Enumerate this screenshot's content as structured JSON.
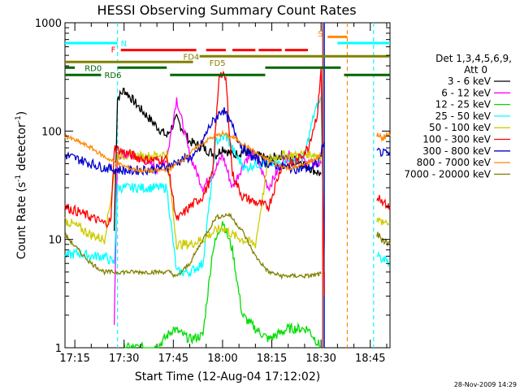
{
  "chart_data": {
    "type": "line",
    "title": "HESSI Observing Summary Count Rates",
    "xlabel": "Start Time (12-Aug-04 17:12:02)",
    "ylabel_main": "Count Rate (s",
    "ylabel_sup": "-1",
    "ylabel_mid": " detector",
    "ylabel_end": ")",
    "ylim": [
      1,
      1000
    ],
    "yscale": "log",
    "xlim_min": [
      1032,
      1131
    ],
    "x_ticks": [
      {
        "label": "17:15",
        "min": 1035
      },
      {
        "label": "17:30",
        "min": 1050
      },
      {
        "label": "17:45",
        "min": 1065
      },
      {
        "label": "18:00",
        "min": 1080
      },
      {
        "label": "18:15",
        "min": 1095
      },
      {
        "label": "18:30",
        "min": 1110
      },
      {
        "label": "18:45",
        "min": 1125
      }
    ],
    "y_ticks": [
      {
        "label": "1",
        "value": 1
      },
      {
        "label": "10",
        "value": 10
      },
      {
        "label": "100",
        "value": 100
      },
      {
        "label": "1000",
        "value": 1000
      }
    ],
    "legend_title_1": "Det 1,3,4,5,6,9,",
    "legend_title_2": "Att 0",
    "legend_position": "right",
    "series": [
      {
        "name": "3 - 6 keV",
        "color": "#000000",
        "points": [
          [
            1047,
            12
          ],
          [
            1048,
            200
          ],
          [
            1050,
            240
          ],
          [
            1055,
            160
          ],
          [
            1060,
            110
          ],
          [
            1063,
            90
          ],
          [
            1066,
            130
          ],
          [
            1070,
            80
          ],
          [
            1074,
            70
          ],
          [
            1078,
            60
          ],
          [
            1080,
            70
          ],
          [
            1083,
            60
          ],
          [
            1087,
            65
          ],
          [
            1090,
            60
          ],
          [
            1094,
            55
          ],
          [
            1098,
            60
          ],
          [
            1104,
            52
          ],
          [
            1107,
            45
          ],
          [
            1110,
            40
          ]
        ]
      },
      {
        "name": "6 - 12 keV",
        "color": "#ff00ff",
        "points": [
          [
            1047,
            1.5
          ],
          [
            1048,
            60
          ],
          [
            1052,
            60
          ],
          [
            1056,
            55
          ],
          [
            1060,
            45
          ],
          [
            1063,
            55
          ],
          [
            1066,
            200
          ],
          [
            1070,
            60
          ],
          [
            1074,
            30
          ],
          [
            1077,
            40
          ],
          [
            1080,
            60
          ],
          [
            1083,
            30
          ],
          [
            1087,
            55
          ],
          [
            1090,
            60
          ],
          [
            1094,
            30
          ],
          [
            1098,
            50
          ],
          [
            1100,
            60
          ],
          [
            1104,
            55
          ],
          [
            1107,
            50
          ],
          [
            1110,
            50
          ]
        ]
      },
      {
        "name": "12 - 25 keV",
        "color": "#00dd00",
        "points": [
          [
            1050,
            1
          ],
          [
            1060,
            1
          ],
          [
            1065,
            1.5
          ],
          [
            1070,
            1.2
          ],
          [
            1074,
            1.3
          ],
          [
            1077,
            8
          ],
          [
            1080,
            15
          ],
          [
            1083,
            8
          ],
          [
            1086,
            2
          ],
          [
            1090,
            1.5
          ],
          [
            1094,
            1.2
          ],
          [
            1100,
            1.5
          ],
          [
            1106,
            1.5
          ],
          [
            1110,
            1
          ]
        ]
      },
      {
        "name": "25 - 50 keV",
        "color": "#00ffff",
        "points": [
          [
            1032,
            7
          ],
          [
            1036,
            7.5
          ],
          [
            1040,
            7
          ],
          [
            1044,
            7
          ],
          [
            1047,
            6
          ],
          [
            1048,
            30
          ],
          [
            1052,
            30
          ],
          [
            1056,
            30
          ],
          [
            1060,
            30
          ],
          [
            1063,
            30
          ],
          [
            1066,
            5
          ],
          [
            1070,
            5
          ],
          [
            1074,
            6
          ],
          [
            1078,
            80
          ],
          [
            1081,
            90
          ],
          [
            1084,
            60
          ],
          [
            1087,
            45
          ],
          [
            1090,
            50
          ],
          [
            1094,
            50
          ],
          [
            1098,
            50
          ],
          [
            1102,
            52
          ],
          [
            1105,
            60
          ],
          [
            1108,
            150
          ],
          [
            1110,
            200
          ],
          [
            1111,
            5
          ]
        ]
      },
      {
        "name": "50 - 100 keV",
        "color": "#cccc00",
        "points": [
          [
            1032,
            15
          ],
          [
            1036,
            13
          ],
          [
            1040,
            11
          ],
          [
            1044,
            10
          ],
          [
            1048,
            60
          ],
          [
            1052,
            60
          ],
          [
            1056,
            58
          ],
          [
            1060,
            60
          ],
          [
            1063,
            62
          ],
          [
            1066,
            9
          ],
          [
            1070,
            9
          ],
          [
            1074,
            10
          ],
          [
            1078,
            12
          ],
          [
            1080,
            13
          ],
          [
            1083,
            11
          ],
          [
            1086,
            10
          ],
          [
            1090,
            9
          ],
          [
            1094,
            55
          ],
          [
            1098,
            60
          ],
          [
            1102,
            60
          ],
          [
            1106,
            62
          ],
          [
            1110,
            60
          ]
        ]
      },
      {
        "name": "100 - 300 keV",
        "color": "#ff0000",
        "points": [
          [
            1032,
            20
          ],
          [
            1036,
            18
          ],
          [
            1040,
            16
          ],
          [
            1044,
            14
          ],
          [
            1046,
            15
          ],
          [
            1047,
            70
          ],
          [
            1052,
            60
          ],
          [
            1056,
            55
          ],
          [
            1060,
            54
          ],
          [
            1063,
            55
          ],
          [
            1066,
            15
          ],
          [
            1070,
            20
          ],
          [
            1074,
            25
          ],
          [
            1077,
            40
          ],
          [
            1079,
            350
          ],
          [
            1081,
            300
          ],
          [
            1083,
            40
          ],
          [
            1086,
            25
          ],
          [
            1090,
            22
          ],
          [
            1094,
            20
          ],
          [
            1098,
            48
          ],
          [
            1102,
            50
          ],
          [
            1106,
            70
          ],
          [
            1109,
            150
          ],
          [
            1110,
            400
          ],
          [
            1111,
            3
          ]
        ]
      },
      {
        "name": "300 - 800 keV",
        "color": "#0000cc",
        "points": [
          [
            1032,
            60
          ],
          [
            1036,
            55
          ],
          [
            1040,
            50
          ],
          [
            1044,
            46
          ],
          [
            1048,
            44
          ],
          [
            1052,
            43
          ],
          [
            1056,
            44
          ],
          [
            1060,
            45
          ],
          [
            1064,
            48
          ],
          [
            1068,
            55
          ],
          [
            1072,
            60
          ],
          [
            1076,
            110
          ],
          [
            1080,
            160
          ],
          [
            1083,
            110
          ],
          [
            1086,
            70
          ],
          [
            1090,
            55
          ],
          [
            1094,
            50
          ],
          [
            1098,
            47
          ],
          [
            1102,
            45
          ],
          [
            1106,
            45
          ],
          [
            1109,
            50
          ],
          [
            1111,
            80
          ]
        ]
      },
      {
        "name": "800 - 7000 keV",
        "color": "#ff8800",
        "points": [
          [
            1032,
            90
          ],
          [
            1036,
            80
          ],
          [
            1040,
            70
          ],
          [
            1044,
            58
          ],
          [
            1048,
            50
          ],
          [
            1052,
            45
          ],
          [
            1056,
            43
          ],
          [
            1060,
            43
          ],
          [
            1064,
            45
          ],
          [
            1068,
            55
          ],
          [
            1072,
            70
          ],
          [
            1076,
            85
          ],
          [
            1080,
            95
          ],
          [
            1084,
            85
          ],
          [
            1088,
            70
          ],
          [
            1092,
            58
          ],
          [
            1096,
            50
          ],
          [
            1100,
            45
          ],
          [
            1104,
            48
          ],
          [
            1108,
            55
          ],
          [
            1110,
            60
          ]
        ]
      },
      {
        "name": "7000 - 20000 keV",
        "color": "#808000",
        "points": [
          [
            1032,
            11
          ],
          [
            1036,
            8
          ],
          [
            1040,
            6
          ],
          [
            1044,
            5
          ],
          [
            1048,
            5
          ],
          [
            1052,
            5
          ],
          [
            1056,
            5
          ],
          [
            1060,
            5
          ],
          [
            1064,
            5
          ],
          [
            1066,
            4.5
          ],
          [
            1070,
            6
          ],
          [
            1074,
            10
          ],
          [
            1078,
            16
          ],
          [
            1082,
            17
          ],
          [
            1086,
            12
          ],
          [
            1090,
            7
          ],
          [
            1094,
            5
          ],
          [
            1098,
            4.6
          ],
          [
            1102,
            4.6
          ],
          [
            1106,
            4.6
          ],
          [
            1110,
            4.8
          ]
        ]
      }
    ],
    "right_segments": [
      {
        "color": "#0000cc",
        "points": [
          [
            1127,
            65
          ],
          [
            1131,
            60
          ]
        ]
      },
      {
        "color": "#ff8800",
        "points": [
          [
            1127,
            88
          ],
          [
            1131,
            90
          ]
        ]
      },
      {
        "color": "#ff0000",
        "points": [
          [
            1127,
            25
          ],
          [
            1131,
            20
          ]
        ]
      },
      {
        "color": "#cccc00",
        "points": [
          [
            1127,
            15
          ],
          [
            1131,
            14
          ]
        ]
      },
      {
        "color": "#00ffff",
        "points": [
          [
            1127,
            7
          ],
          [
            1131,
            6
          ]
        ]
      },
      {
        "color": "#808000",
        "points": [
          [
            1127,
            11
          ],
          [
            1131,
            9
          ]
        ]
      }
    ],
    "flag_bars": [
      {
        "label": "N",
        "color": "#00ffff",
        "y": 650,
        "segments": [
          [
            1032,
            1048
          ]
        ],
        "label_at": [
          1049,
          650
        ]
      },
      {
        "label": "N",
        "color": "#00ffff",
        "y": 650,
        "segments": [
          [
            1115,
            1131
          ]
        ]
      },
      {
        "label": "S",
        "color": "#ff8800",
        "y": 740,
        "segments": [
          [
            1112,
            1118
          ]
        ],
        "label_at": [
          1109,
          800
        ]
      },
      {
        "label": "F",
        "color": "#ff0000",
        "y": 560,
        "segments": [
          [
            1049,
            1072
          ],
          [
            1075,
            1081
          ],
          [
            1083,
            1090
          ],
          [
            1091,
            1098
          ],
          [
            1099,
            1106
          ]
        ],
        "label_at": [
          1046,
          570
        ]
      },
      {
        "label": "FD4",
        "color": "#808000",
        "y": 490,
        "segments": [
          [
            1073,
            1131
          ]
        ],
        "label_at": [
          1068,
          490
        ]
      },
      {
        "label": "FD5",
        "color": "#808000",
        "y": 435,
        "segments": [
          [
            1032,
            1071
          ]
        ],
        "label_at": [
          1076,
          430
        ]
      },
      {
        "label": "RD0",
        "color": "#006600",
        "y": 385,
        "segments": [
          [
            1032,
            1035
          ],
          [
            1048,
            1063
          ],
          [
            1093,
            1116
          ]
        ],
        "label_at": [
          1038,
          385
        ]
      },
      {
        "label": "RD6",
        "color": "#006600",
        "y": 330,
        "segments": [
          [
            1032,
            1043
          ],
          [
            1064,
            1093
          ],
          [
            1117,
            1131
          ]
        ],
        "label_at": [
          1044,
          330
        ]
      }
    ],
    "vlines": [
      {
        "color": "#00ffff",
        "x": 1048,
        "style": "dashed"
      },
      {
        "color": "#00ffff",
        "x": 1110.8,
        "style": "solid"
      },
      {
        "color": "#ff8800",
        "x": 1118,
        "style": "dashed"
      },
      {
        "color": "#00ffff",
        "x": 1126,
        "style": "dashed"
      },
      {
        "color": "#ff0000",
        "x": 1110.5,
        "style": "solid"
      },
      {
        "color": "#0000cc",
        "x": 1111,
        "style": "solid"
      }
    ]
  },
  "footer": {
    "timestamp": "28-Nov-2009 14:29"
  }
}
